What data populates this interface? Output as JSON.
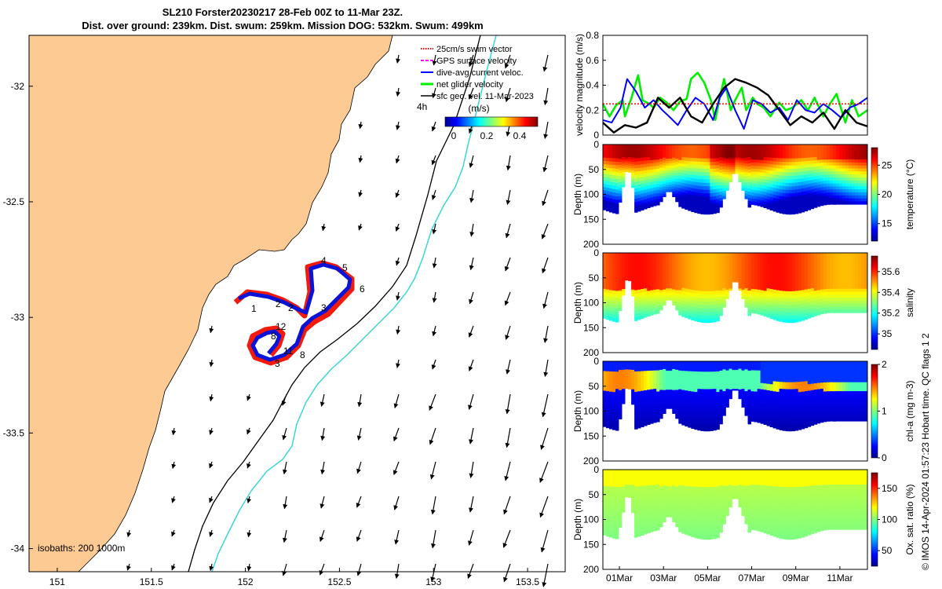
{
  "title": {
    "line1": "SL210 Forster20230217 28-Feb 00Z to 11-Mar 23Z.",
    "line2": "Dist. over ground: 239km. Dist. swum: 259km. Mission DOG: 532km. Swum: 499km"
  },
  "map": {
    "x_ticks": [
      "151",
      "151.5",
      "152",
      "152.5",
      "153",
      "153.5"
    ],
    "y_ticks": [
      "-32",
      "-32.5",
      "-33",
      "-33.5",
      "-34"
    ],
    "xlim": [
      150.85,
      153.7
    ],
    "ylim": [
      -34.1,
      -31.78
    ],
    "legend": [
      {
        "label": "25cm/s swim vector",
        "color": "#ff0000",
        "style": "dotted"
      },
      {
        "label": "GPS surface velocity",
        "color": "#ff00ff",
        "style": "dash"
      },
      {
        "label": "dive-avg current veloc.",
        "color": "#0000ff",
        "style": "solid"
      },
      {
        "label": "net glider velocity",
        "color": "#00ee00",
        "style": "solid"
      },
      {
        "label": "sfc geo. vel. 11-Mar-2023",
        "color": "#000000",
        "style": "solid"
      }
    ],
    "colorbar_label": "(m/s)",
    "colorbar_ticks": [
      "0",
      "0.2",
      "0.4"
    ],
    "arrow_label": "4h",
    "isobath_label": "isobaths: 200  1000m",
    "day_labels": [
      "1",
      "2",
      "3",
      "4",
      "5",
      "6",
      "8",
      "8",
      "11",
      "12",
      "2",
      "3"
    ],
    "colors": {
      "land": "#fdca94",
      "track_blue": "#0a14d8",
      "track_red": "#f21a0a",
      "isobath_1000": "#3ad6d6"
    }
  },
  "chart_data": [
    {
      "type": "line",
      "title": "",
      "ylabel": "velocity magnitude (m/s)",
      "ylim": [
        0,
        0.8
      ],
      "y_ticks": [
        "0",
        "0.2",
        "0.4",
        "0.6",
        "0.8"
      ],
      "xlim": [
        0,
        12
      ],
      "series": [
        {
          "name": "net glider velocity",
          "color": "#00ee00",
          "x": [
            0,
            0.3,
            0.6,
            0.9,
            1.0,
            1.3,
            1.6,
            1.8,
            2.1,
            2.3,
            2.6,
            2.9,
            3.2,
            3.5,
            3.8,
            4.0,
            4.3,
            4.6,
            4.9,
            5.1,
            5.3,
            5.5,
            5.8,
            6.0,
            6.3,
            6.5,
            6.8,
            7.0,
            7.3,
            7.6,
            8.0,
            8.3,
            8.6,
            9.0,
            9.3,
            9.6,
            10.0,
            10.3,
            10.6,
            11.0,
            11.3,
            11.6,
            12.0
          ],
          "y": [
            0.25,
            0.15,
            0.24,
            0.28,
            0.15,
            0.3,
            0.48,
            0.28,
            0.25,
            0.22,
            0.3,
            0.26,
            0.2,
            0.27,
            0.29,
            0.45,
            0.5,
            0.42,
            0.28,
            0.12,
            0.3,
            0.45,
            0.2,
            0.28,
            0.38,
            0.2,
            0.3,
            0.25,
            0.22,
            0.15,
            0.26,
            0.2,
            0.22,
            0.28,
            0.2,
            0.3,
            0.15,
            0.25,
            0.33,
            0.1,
            0.28,
            0.15,
            0.2
          ]
        },
        {
          "name": "dive-avg current veloc.",
          "color": "#0000ff",
          "x": [
            0,
            0.4,
            0.8,
            1.1,
            1.5,
            1.9,
            2.3,
            2.7,
            3.0,
            3.4,
            3.8,
            4.2,
            4.6,
            5.0,
            5.3,
            5.6,
            6.0,
            6.4,
            6.8,
            7.2,
            7.6,
            8.0,
            8.4,
            8.8,
            9.2,
            9.6,
            10.0,
            10.4,
            10.8,
            11.2,
            11.6,
            12.0
          ],
          "y": [
            0.12,
            0.1,
            0.22,
            0.45,
            0.35,
            0.22,
            0.28,
            0.2,
            0.15,
            0.08,
            0.2,
            0.3,
            0.25,
            0.12,
            0.3,
            0.38,
            0.2,
            0.05,
            0.28,
            0.25,
            0.18,
            0.22,
            0.12,
            0.28,
            0.2,
            0.18,
            0.25,
            0.2,
            0.14,
            0.22,
            0.25,
            0.3
          ]
        },
        {
          "name": "25cm/s swim vector",
          "color": "#ff0000",
          "x": [
            0,
            12
          ],
          "y": [
            0.25,
            0.25
          ]
        },
        {
          "name": "sfc geo. vel. 11-Mar-2023",
          "color": "#000000",
          "x": [
            0,
            0.5,
            1.0,
            1.5,
            2.0,
            2.5,
            3.0,
            3.5,
            4.0,
            4.5,
            5.0,
            5.5,
            6.0,
            6.5,
            7.0,
            7.5,
            8.0,
            8.5,
            9.0,
            9.5,
            10.0,
            10.5,
            11.0,
            11.5,
            12.0
          ],
          "y": [
            0.1,
            0.02,
            0.08,
            0.06,
            0.1,
            0.3,
            0.22,
            0.3,
            0.15,
            0.1,
            0.25,
            0.38,
            0.45,
            0.42,
            0.38,
            0.32,
            0.2,
            0.08,
            0.15,
            0.1,
            0.18,
            0.05,
            0.2,
            0.1,
            0.07
          ]
        }
      ]
    },
    {
      "type": "heatmap",
      "ylabel": "Depth (m)",
      "colorbar_label": "temperature (°C)",
      "colorbar_ticks": [
        "15",
        "20",
        "25"
      ],
      "clim": [
        12,
        28
      ],
      "y_ticks": [
        "0",
        "50",
        "100",
        "150",
        "200"
      ]
    },
    {
      "type": "heatmap",
      "ylabel": "Depth (m)",
      "colorbar_label": "salinity",
      "colorbar_ticks": [
        "35",
        "35.2",
        "35.4",
        "35.6"
      ],
      "clim": [
        34.85,
        35.75
      ],
      "y_ticks": [
        "0",
        "50",
        "100",
        "150",
        "200"
      ]
    },
    {
      "type": "heatmap",
      "ylabel": "Depth (m)",
      "colorbar_label": "chl-a (mg m-3)",
      "colorbar_ticks": [
        "0",
        "1",
        "2"
      ],
      "clim": [
        0,
        2
      ],
      "y_ticks": [
        "0",
        "50",
        "100",
        "150",
        "200"
      ]
    },
    {
      "type": "heatmap",
      "ylabel": "Depth (m)",
      "colorbar_label": "Ox. sat. ratio (%)",
      "colorbar_ticks": [
        "50",
        "100",
        "150"
      ],
      "clim": [
        25,
        175
      ],
      "y_ticks": [
        "0",
        "50",
        "100",
        "150",
        "200"
      ],
      "x_ticks": [
        "01Mar",
        "03Mar",
        "05Mar",
        "07Mar",
        "09Mar",
        "11Mar"
      ]
    }
  ],
  "footer": {
    "text": "© IMOS 14-Apr-2024 01:57:23 Hobart time. QC flags 1  2"
  }
}
